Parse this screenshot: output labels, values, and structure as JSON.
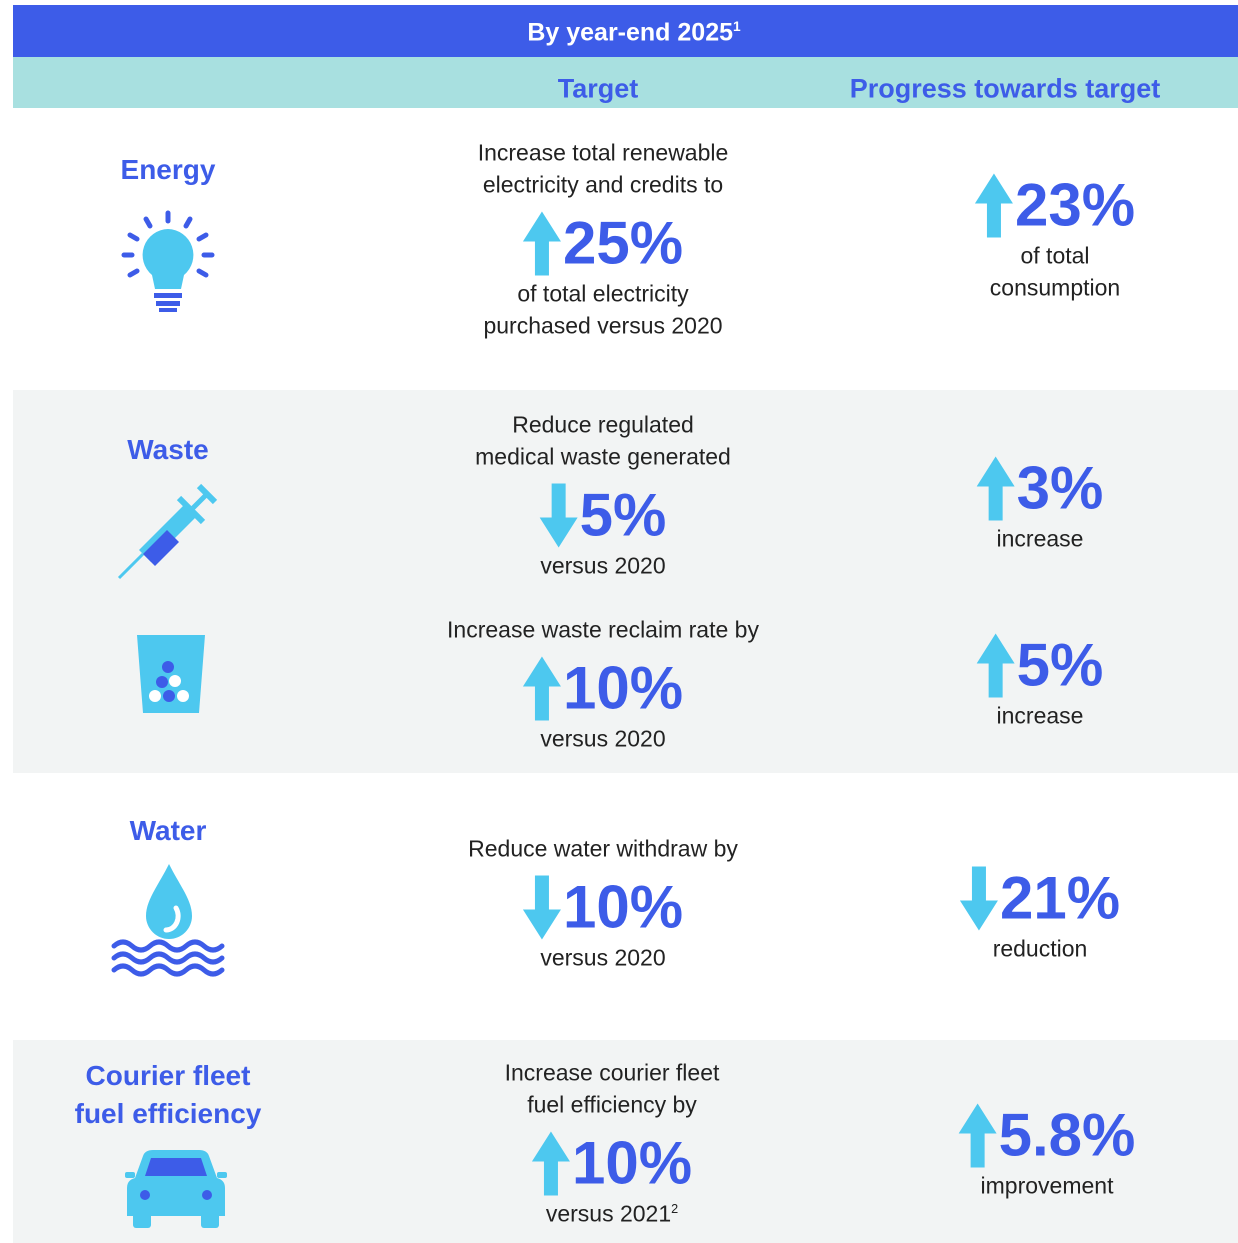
{
  "header": {
    "title": "By year-end 2025",
    "title_note": "1",
    "columns": [
      "Target",
      "Progress towards target"
    ]
  },
  "rows": [
    {
      "label": [
        "Energy"
      ],
      "items": [
        {
          "target": {
            "before": [
              "Increase total renewable",
              "electricity and credits to"
            ],
            "direction": "up",
            "value": "25%",
            "after": [
              "of total electricity",
              "purchased versus 2020"
            ]
          },
          "progress": {
            "direction": "up",
            "value": "23%",
            "after": [
              "of total",
              "consumption"
            ]
          }
        }
      ]
    },
    {
      "label": [
        "Waste"
      ],
      "items": [
        {
          "target": {
            "before": [
              "Reduce regulated",
              "medical waste generated"
            ],
            "direction": "down",
            "value": "5%",
            "after": [
              "versus 2020"
            ]
          },
          "progress": {
            "direction": "up",
            "value": "3%",
            "after": [
              "increase"
            ]
          }
        },
        {
          "target": {
            "before": [
              "Increase waste reclaim rate by"
            ],
            "direction": "up",
            "value": "10%",
            "after": [
              "versus 2020"
            ]
          },
          "progress": {
            "direction": "up",
            "value": "5%",
            "after": [
              "increase"
            ]
          }
        }
      ]
    },
    {
      "label": [
        "Water"
      ],
      "items": [
        {
          "target": {
            "before": [
              "Reduce water withdraw by"
            ],
            "direction": "down",
            "value": "10%",
            "after": [
              "versus 2020"
            ]
          },
          "progress": {
            "direction": "down",
            "value": "21%",
            "after": [
              "reduction"
            ]
          }
        }
      ]
    },
    {
      "label": [
        "Courier fleet",
        "fuel efficiency"
      ],
      "items": [
        {
          "target": {
            "before": [
              "Increase courier fleet",
              "fuel efficiency by"
            ],
            "direction": "up",
            "value": "10%",
            "after": [
              "versus 2021"
            ],
            "after_note": "2"
          },
          "progress": {
            "direction": "up",
            "value": "5.8%",
            "after": [
              "improvement"
            ]
          }
        }
      ]
    }
  ]
}
